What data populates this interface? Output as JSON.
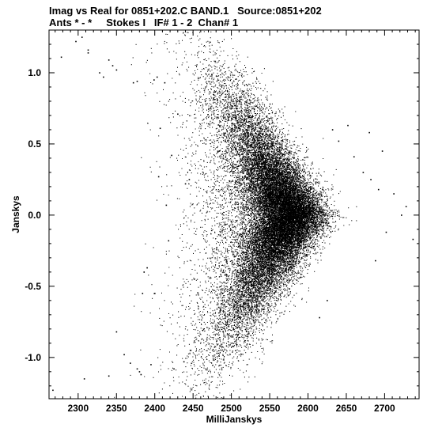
{
  "header": {
    "title_line1": "Imag vs Real for 0851+202.C BAND.1   Source:0851+202",
    "title_line2": "Ants * - *     Stokes I   IF# 1 - 2  Chan# 1"
  },
  "chart_data": {
    "type": "scatter",
    "xlabel": "MilliJanskys",
    "ylabel": "Janskys",
    "xlim": [
      2262,
      2745
    ],
    "ylim": [
      -1.29,
      1.3
    ],
    "xticks": [
      2300,
      2350,
      2400,
      2450,
      2500,
      2550,
      2600,
      2650,
      2700
    ],
    "yticks": [
      1.0,
      0.5,
      0.0,
      -0.5,
      -1.0
    ],
    "ytick_labels": [
      "1.0",
      "0.5",
      "0.0",
      "-0.5",
      "-1.0"
    ],
    "grid": false,
    "marker_color": "#000000",
    "distribution": {
      "dense_core": {
        "x_range": [
          2505,
          2650
        ],
        "y_range": [
          -0.5,
          0.55
        ],
        "center": [
          2575,
          0.0
        ]
      },
      "point_count_approx": 60000
    },
    "outliers": [
      {
        "x": 2267,
        "y": -1.23
      },
      {
        "x": 2278,
        "y": 1.11
      },
      {
        "x": 2297,
        "y": 1.22
      },
      {
        "x": 2305,
        "y": 1.25
      },
      {
        "x": 2313,
        "y": 1.16
      },
      {
        "x": 2313,
        "y": 1.14
      },
      {
        "x": 2328,
        "y": 1.0
      },
      {
        "x": 2333,
        "y": 0.97
      },
      {
        "x": 2340,
        "y": 1.09
      },
      {
        "x": 2345,
        "y": 1.05
      },
      {
        "x": 2350,
        "y": 1.02
      },
      {
        "x": 2308,
        "y": -1.15
      },
      {
        "x": 2340,
        "y": -1.13
      },
      {
        "x": 2350,
        "y": -0.82
      },
      {
        "x": 2360,
        "y": -0.98
      },
      {
        "x": 2368,
        "y": -1.04
      },
      {
        "x": 2372,
        "y": 0.93
      },
      {
        "x": 2377,
        "y": 0.94
      },
      {
        "x": 2380,
        "y": -1.1
      },
      {
        "x": 2377,
        "y": -1.08
      },
      {
        "x": 2382,
        "y": -1.12
      },
      {
        "x": 2384,
        "y": -0.55
      },
      {
        "x": 2386,
        "y": -0.4
      },
      {
        "x": 2390,
        "y": -0.37
      },
      {
        "x": 2395,
        "y": -1.05
      },
      {
        "x": 2399,
        "y": 0.95
      },
      {
        "x": 2403,
        "y": 0.97
      },
      {
        "x": 2400,
        "y": -0.55
      },
      {
        "x": 2405,
        "y": 0.27
      },
      {
        "x": 2407,
        "y": 0.61
      },
      {
        "x": 2413,
        "y": 0.93
      },
      {
        "x": 2415,
        "y": 0.07
      },
      {
        "x": 2418,
        "y": -0.18
      },
      {
        "x": 2422,
        "y": 0.42
      },
      {
        "x": 2425,
        "y": -1.08
      },
      {
        "x": 2430,
        "y": 0.71
      },
      {
        "x": 2438,
        "y": -1.03
      },
      {
        "x": 2440,
        "y": 0.22
      },
      {
        "x": 2445,
        "y": 0.25
      },
      {
        "x": 2447,
        "y": -0.95
      },
      {
        "x": 2652,
        "y": 0.63
      },
      {
        "x": 2660,
        "y": 0.41
      },
      {
        "x": 2672,
        "y": 0.3
      },
      {
        "x": 2682,
        "y": 0.25
      },
      {
        "x": 2692,
        "y": 0.18
      },
      {
        "x": 2697,
        "y": 0.45
      },
      {
        "x": 2702,
        "y": -0.12
      },
      {
        "x": 2712,
        "y": 0.15
      },
      {
        "x": 2722,
        "y": 0.0
      },
      {
        "x": 2728,
        "y": 0.06
      },
      {
        "x": 2737,
        "y": -0.17
      },
      {
        "x": 2680,
        "y": 0.58
      },
      {
        "x": 2688,
        "y": -0.32
      },
      {
        "x": 2615,
        "y": -0.72
      },
      {
        "x": 2625,
        "y": -0.6
      },
      {
        "x": 2640,
        "y": 0.52
      },
      {
        "x": 2632,
        "y": 0.6
      }
    ]
  }
}
